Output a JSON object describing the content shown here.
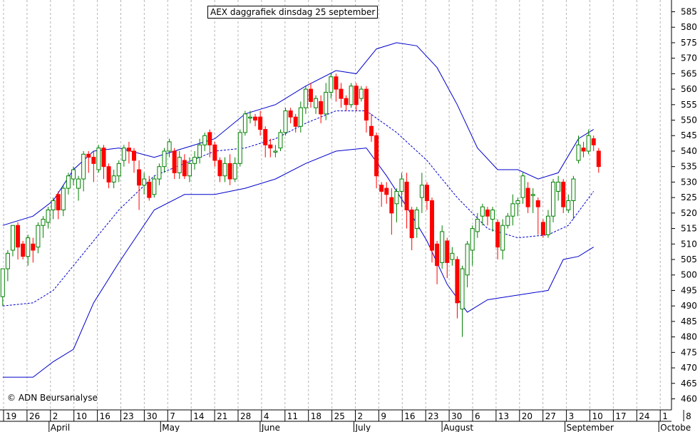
{
  "chart_data": {
    "type": "candlestick",
    "title": "AEX daggrafiek dinsdag 25 september",
    "credit": "© ADN Beursanalyse",
    "ylim": [
      455,
      587
    ],
    "y_ticks": [
      460,
      465,
      470,
      475,
      480,
      485,
      490,
      495,
      500,
      505,
      510,
      515,
      520,
      525,
      530,
      535,
      540,
      545,
      550,
      555,
      560,
      565,
      570,
      575,
      580,
      585
    ],
    "x_tick_labels": [
      "19",
      "26",
      "2",
      "10",
      "16",
      "23",
      "30",
      "7",
      "14",
      "21",
      "28",
      "4",
      "11",
      "18",
      "25",
      "2",
      "9",
      "16",
      "23",
      "30",
      "6",
      "13",
      "20",
      "27",
      "3",
      "10",
      "17",
      "24",
      "1",
      "8"
    ],
    "month_labels": [
      "April",
      "May",
      "June",
      "July",
      "August",
      "September",
      "Octobe"
    ],
    "grid": true,
    "colors": {
      "up": "#008000",
      "down": "#ff0000",
      "band": "#0000cc",
      "average": "#0000cc",
      "grid": "#b4b4b4"
    },
    "series": [
      {
        "name": "candles",
        "values": [
          [
            493,
            502,
            490,
            501
          ],
          [
            502,
            507,
            498,
            508
          ],
          [
            508,
            516,
            506,
            515
          ],
          [
            516,
            509,
            505,
            517
          ],
          [
            510,
            506,
            505,
            511
          ],
          [
            506,
            512,
            503,
            513
          ],
          [
            510,
            508,
            504,
            512
          ],
          [
            509,
            516,
            507,
            517
          ],
          [
            516,
            518,
            512,
            519
          ],
          [
            517,
            521,
            515,
            522
          ],
          [
            521,
            524,
            518,
            525
          ],
          [
            526,
            521,
            518,
            527
          ],
          [
            521,
            528,
            519,
            529
          ],
          [
            528,
            532,
            526,
            533
          ],
          [
            531,
            534,
            529,
            535
          ],
          [
            528,
            531,
            524,
            532
          ],
          [
            531,
            539,
            527,
            540
          ],
          [
            539,
            538,
            533,
            540
          ],
          [
            538,
            536,
            530,
            540
          ],
          [
            534,
            541,
            533,
            542
          ],
          [
            541,
            535,
            531,
            542
          ],
          [
            535,
            530,
            528,
            536
          ],
          [
            530,
            532,
            528,
            534
          ],
          [
            532,
            536,
            530,
            537
          ],
          [
            537,
            541,
            535,
            542
          ],
          [
            541,
            540,
            536,
            543
          ],
          [
            540,
            537,
            533,
            541
          ],
          [
            534,
            529,
            521,
            537
          ],
          [
            529,
            531,
            526,
            533
          ],
          [
            530,
            525,
            524,
            532
          ],
          [
            526,
            531,
            525,
            532
          ],
          [
            531,
            535,
            529,
            536
          ],
          [
            535,
            540,
            533,
            541
          ],
          [
            540,
            543,
            538,
            544
          ],
          [
            540,
            533,
            531,
            541
          ],
          [
            533,
            538,
            531,
            540
          ],
          [
            537,
            532,
            531,
            539
          ],
          [
            532,
            536,
            530,
            538
          ],
          [
            536,
            538,
            534,
            540
          ],
          [
            538,
            542,
            536,
            544
          ],
          [
            542,
            545,
            540,
            546
          ],
          [
            546,
            542,
            538,
            547
          ],
          [
            542,
            537,
            535,
            543
          ],
          [
            537,
            532,
            530,
            538
          ],
          [
            532,
            536,
            530,
            538
          ],
          [
            536,
            531,
            529,
            539
          ],
          [
            531,
            536,
            530,
            538
          ],
          [
            536,
            546,
            535,
            547
          ],
          [
            546,
            552,
            545,
            553
          ],
          [
            551,
            551,
            549,
            553
          ],
          [
            551,
            550,
            548,
            552
          ],
          [
            551,
            547,
            545,
            553
          ],
          [
            547,
            542,
            538,
            548
          ],
          [
            542,
            541,
            538,
            544
          ],
          [
            540,
            540,
            538,
            542
          ],
          [
            541,
            546,
            540,
            547
          ],
          [
            546,
            553,
            545,
            554
          ],
          [
            553,
            551,
            549,
            554
          ],
          [
            551,
            548,
            546,
            552
          ],
          [
            548,
            554,
            546,
            556
          ],
          [
            554,
            560,
            552,
            561
          ],
          [
            560,
            556,
            554,
            562
          ],
          [
            554,
            557,
            552,
            558
          ],
          [
            556,
            552,
            549,
            558
          ],
          [
            552,
            559,
            550,
            562
          ],
          [
            559,
            564,
            557,
            565
          ],
          [
            564,
            560,
            556,
            565
          ],
          [
            560,
            557,
            554,
            562
          ],
          [
            557,
            555,
            553,
            558
          ],
          [
            555,
            561,
            554,
            562
          ],
          [
            561,
            555,
            553,
            562
          ],
          [
            557,
            560,
            556,
            561
          ],
          [
            560,
            550,
            546,
            561
          ],
          [
            548,
            545,
            543,
            552
          ],
          [
            545,
            532,
            528,
            546
          ],
          [
            529,
            527,
            522,
            530
          ],
          [
            528,
            526,
            523,
            530
          ],
          [
            525,
            520,
            513,
            528
          ],
          [
            523,
            527,
            517,
            528
          ],
          [
            527,
            531,
            522,
            533
          ],
          [
            530,
            521,
            515,
            533
          ],
          [
            521,
            512,
            508,
            522
          ],
          [
            515,
            521,
            512,
            522
          ],
          [
            525,
            529,
            520,
            533
          ],
          [
            529,
            524,
            521,
            530
          ],
          [
            524,
            508,
            504,
            525
          ],
          [
            510,
            503,
            497,
            511
          ],
          [
            504,
            514,
            502,
            516
          ],
          [
            511,
            504,
            499,
            512
          ],
          [
            505,
            507,
            503,
            509
          ],
          [
            505,
            491,
            486,
            506
          ],
          [
            489,
            502,
            480,
            503
          ],
          [
            500,
            510,
            496,
            511
          ],
          [
            508,
            515,
            503,
            516
          ],
          [
            514,
            518,
            512,
            520
          ],
          [
            519,
            522,
            516,
            523
          ],
          [
            521,
            519,
            516,
            522
          ],
          [
            518,
            521,
            514,
            522
          ],
          [
            517,
            509,
            505,
            518
          ],
          [
            508,
            516,
            505,
            518
          ],
          [
            516,
            519,
            515,
            520
          ],
          [
            519,
            523,
            516,
            526
          ],
          [
            523,
            524,
            519,
            525
          ],
          [
            525,
            532,
            523,
            533
          ],
          [
            528,
            522,
            520,
            530
          ],
          [
            526,
            526,
            520,
            528
          ],
          [
            524,
            522,
            513,
            525
          ],
          [
            517,
            513,
            512,
            518
          ],
          [
            513,
            519,
            512,
            521
          ],
          [
            519,
            530,
            517,
            531
          ],
          [
            527,
            530,
            524,
            532
          ],
          [
            530,
            522,
            520,
            531
          ],
          [
            521,
            524,
            520,
            526
          ],
          [
            524,
            531,
            518,
            532
          ],
          [
            537,
            542,
            536,
            545
          ],
          [
            541,
            540,
            538,
            543
          ],
          [
            540,
            545,
            539,
            547
          ],
          [
            544,
            542,
            540,
            545
          ],
          [
            540,
            535,
            533,
            541
          ]
        ]
      },
      {
        "name": "upper band",
        "values": [
          [
            0,
            516
          ],
          [
            6,
            519
          ],
          [
            10,
            524
          ],
          [
            14,
            534
          ],
          [
            18,
            540
          ],
          [
            23,
            541
          ],
          [
            30,
            538
          ],
          [
            36,
            541
          ],
          [
            42,
            544
          ],
          [
            48,
            552
          ],
          [
            54,
            555
          ],
          [
            60,
            561
          ],
          [
            66,
            566
          ],
          [
            70,
            565
          ],
          [
            74,
            573
          ],
          [
            78,
            575
          ],
          [
            82,
            574
          ],
          [
            86,
            567
          ],
          [
            90,
            555
          ],
          [
            94,
            541
          ],
          [
            98,
            534
          ],
          [
            102,
            534
          ],
          [
            106,
            531
          ],
          [
            110,
            533
          ],
          [
            114,
            544
          ],
          [
            117,
            547
          ]
        ]
      },
      {
        "name": "average",
        "values": [
          [
            0,
            490
          ],
          [
            6,
            491
          ],
          [
            10,
            495
          ],
          [
            14,
            503
          ],
          [
            18,
            511
          ],
          [
            23,
            521
          ],
          [
            30,
            532
          ],
          [
            36,
            536
          ],
          [
            42,
            540
          ],
          [
            48,
            541
          ],
          [
            54,
            544
          ],
          [
            60,
            549
          ],
          [
            66,
            553
          ],
          [
            72,
            553
          ],
          [
            78,
            546
          ],
          [
            84,
            537
          ],
          [
            90,
            525
          ],
          [
            96,
            515
          ],
          [
            102,
            512
          ],
          [
            108,
            513
          ],
          [
            112,
            516
          ],
          [
            117,
            527
          ]
        ]
      },
      {
        "name": "lower band",
        "values": [
          [
            0,
            467
          ],
          [
            6,
            467
          ],
          [
            10,
            472
          ],
          [
            14,
            476
          ],
          [
            18,
            491
          ],
          [
            23,
            504
          ],
          [
            30,
            521
          ],
          [
            36,
            526
          ],
          [
            42,
            526
          ],
          [
            48,
            528
          ],
          [
            54,
            531
          ],
          [
            60,
            536
          ],
          [
            66,
            540
          ],
          [
            72,
            541
          ],
          [
            76,
            532
          ],
          [
            80,
            522
          ],
          [
            84,
            511
          ],
          [
            88,
            497
          ],
          [
            92,
            488
          ],
          [
            96,
            492
          ],
          [
            100,
            493
          ],
          [
            104,
            494
          ],
          [
            108,
            495
          ],
          [
            111,
            505
          ],
          [
            114,
            506
          ],
          [
            117,
            509
          ]
        ]
      }
    ]
  }
}
